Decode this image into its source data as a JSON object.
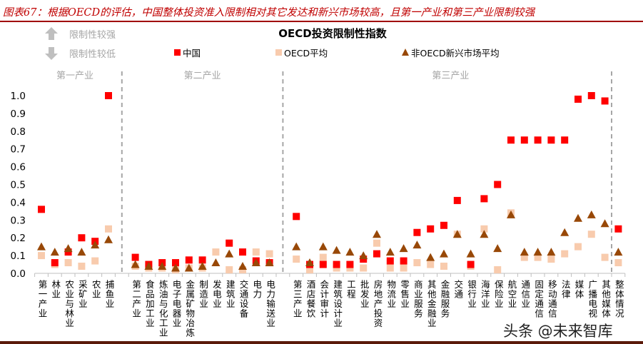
{
  "caption": "图表67：根据OECD的评估，中国整体投资准入限制相对其它发达和新兴市场较高，且第一产业和第三产业限制较强",
  "watermark": "头条 @未来智库",
  "chart_data": {
    "type": "scatter",
    "title": "OECD投资限制性指数",
    "annotations": {
      "up": "限制性较强",
      "down": "限制性较低",
      "up_icon": "arrow-up-icon",
      "down_icon": "arrow-down-icon"
    },
    "groups": [
      {
        "label": "第一产业",
        "categories": [
          "第一产业",
          "林业",
          "农业与林业",
          "采矿业",
          "农业",
          "捕鱼业"
        ]
      },
      {
        "label": "第二产业",
        "categories": [
          "第二产业",
          "食品加工业",
          "炼油与化工业",
          "电子电器业",
          "金属矿物冶炼",
          "制造业",
          "发电业",
          "建筑业",
          "交通设备",
          "电力",
          "电力输送业"
        ]
      },
      {
        "label": "第三产业",
        "categories": [
          "第三产业",
          "酒店餐饮",
          "会计审计",
          "建筑设计业",
          "工程",
          "批发业",
          "房地产投资",
          "物流业",
          "零售业",
          "商业服务",
          "其他金融业",
          "金融服务",
          "交通",
          "银行业",
          "海洋业",
          "保险业",
          "航空业",
          "通信业",
          "固定通信",
          "移动通信",
          "法律",
          "媒体",
          "广播电视",
          "其他媒体"
        ]
      },
      {
        "label": "",
        "categories": [
          "整体情况"
        ]
      }
    ],
    "ylim": [
      0,
      1.0
    ],
    "yticks": [
      "0.0",
      "0.1",
      "0.2",
      "0.3",
      "0.4",
      "0.5",
      "0.6",
      "0.7",
      "0.8",
      "0.9",
      "1.0"
    ],
    "grid": false,
    "legend_placement": "top",
    "series": [
      {
        "name": "中国",
        "marker": "square",
        "color": "#FF0000",
        "values": [
          0.36,
          0.06,
          0.12,
          0.2,
          0.18,
          1.0,
          0.09,
          0.05,
          0.06,
          0.06,
          0.075,
          0.075,
          null,
          0.17,
          0.12,
          0.07,
          0.06,
          0.32,
          0.05,
          0.05,
          0.05,
          0.05,
          0.08,
          0.11,
          0.07,
          0.07,
          0.23,
          0.25,
          0.27,
          0.41,
          0.05,
          0.42,
          0.5,
          0.75,
          0.75,
          0.75,
          0.75,
          0.75,
          0.98,
          1.0,
          0.97,
          0.25
        ]
      },
      {
        "name": "OECD平均",
        "marker": "square",
        "color": "#F8CBAD",
        "values": [
          0.1,
          0.05,
          0.06,
          0.04,
          0.07,
          0.25,
          0.04,
          0.03,
          0.03,
          0.02,
          0.03,
          0.03,
          0.12,
          0.02,
          0.02,
          0.12,
          0.11,
          0.08,
          0.02,
          0.09,
          0.03,
          0.03,
          0.03,
          0.17,
          0.03,
          0.03,
          0.06,
          0.05,
          0.04,
          0.22,
          0.04,
          0.25,
          0.02,
          0.34,
          0.09,
          0.09,
          0.08,
          0.11,
          0.15,
          0.22,
          0.09,
          0.06
        ]
      },
      {
        "name": "非OECD新兴市场平均",
        "marker": "triangle",
        "color": "#984807",
        "values": [
          0.15,
          0.12,
          0.14,
          0.12,
          0.16,
          0.19,
          0.05,
          0.04,
          0.04,
          0.03,
          0.03,
          0.04,
          0.06,
          0.11,
          0.04,
          0.06,
          0.06,
          0.15,
          0.06,
          0.15,
          0.13,
          0.12,
          0.1,
          0.22,
          0.12,
          0.14,
          0.16,
          0.09,
          0.11,
          0.22,
          0.11,
          0.22,
          0.14,
          0.33,
          0.12,
          0.12,
          0.12,
          0.23,
          0.31,
          0.33,
          0.28,
          0.12
        ]
      }
    ]
  }
}
